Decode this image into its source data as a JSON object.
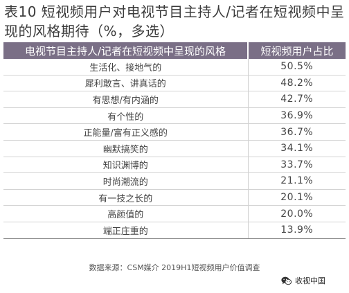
{
  "title": "表10  短视频用户对电视节目主持人/记者在短视频中呈现的风格期待（%，多选）",
  "table": {
    "headers": [
      "电视节目主持人/记者在短视频中呈现的风格",
      "短视频用户占比"
    ],
    "rows": [
      {
        "style": "生活化、接地气的",
        "pct": "50.5%"
      },
      {
        "style": "犀利敢言、讲真话的",
        "pct": "48.2%"
      },
      {
        "style": "有思想/有内涵的",
        "pct": "42.7%"
      },
      {
        "style": "有个性的",
        "pct": "36.9%"
      },
      {
        "style": "正能量/富有正义感的",
        "pct": "36.7%"
      },
      {
        "style": "幽默搞笑的",
        "pct": "34.1%"
      },
      {
        "style": "知识渊博的",
        "pct": "33.7%"
      },
      {
        "style": "时尚潮流的",
        "pct": "21.1%"
      },
      {
        "style": "有一技之长的",
        "pct": "20.1%"
      },
      {
        "style": "高颜值的",
        "pct": "20.0%"
      },
      {
        "style": "端正庄重的",
        "pct": "13.9%"
      }
    ]
  },
  "source": "数据来源：CSM媒介  2019H1短视频用户价值调查",
  "watermark": {
    "icon": "wechat-icon",
    "text": "收视中国"
  },
  "colors": {
    "header_bg": "#7a6f86",
    "header_text": "#ffffff"
  }
}
